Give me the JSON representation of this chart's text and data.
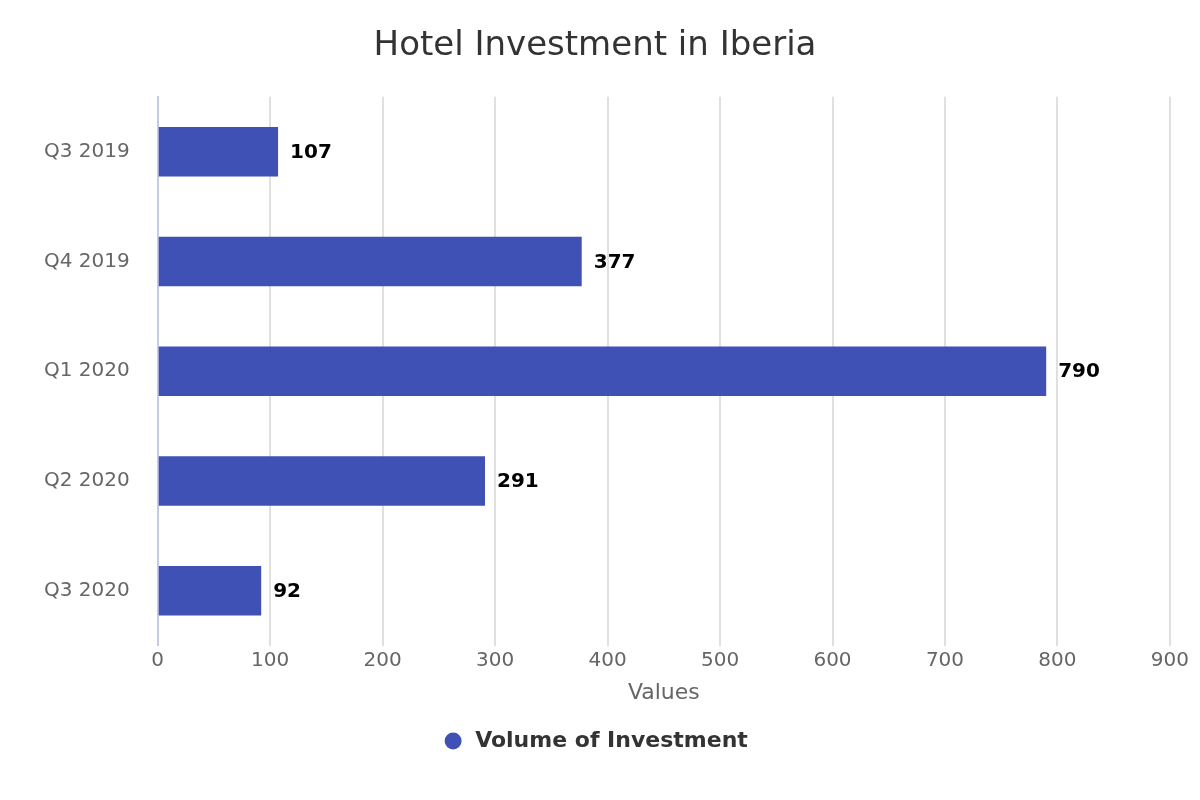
{
  "chart_data": {
    "type": "bar",
    "orientation": "horizontal",
    "title": "Hotel Investment in Iberia",
    "xlabel": "Values",
    "categories": [
      "Q3 2019",
      "Q4 2019",
      "Q1 2020",
      "Q2 2020",
      "Q3 2020"
    ],
    "series": [
      {
        "name": "Volume of Investment",
        "color": "#3f51b5",
        "values": [
          107,
          377,
          790,
          291,
          92
        ]
      }
    ],
    "xlim": [
      0,
      900
    ],
    "xticks": [
      0,
      100,
      200,
      300,
      400,
      500,
      600,
      700,
      800,
      900
    ],
    "grid": "x",
    "legend": "bottom",
    "data_labels": true
  }
}
